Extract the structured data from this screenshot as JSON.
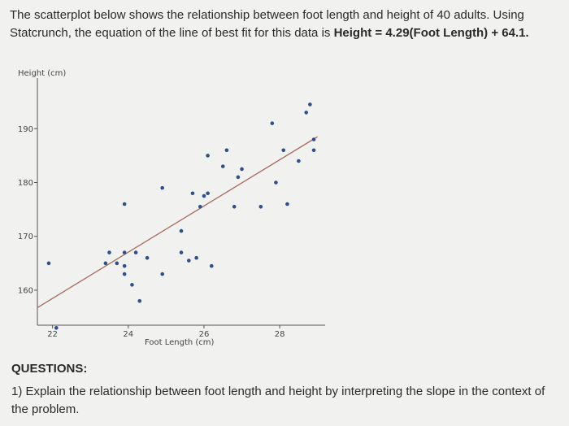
{
  "intro": {
    "text": "The scatterplot below shows the relationship between foot length and height of 40 adults. Using Statcrunch, the equation of the line of best fit for this data is",
    "equation": "Height = 4.29(Foot Length) + 64.1."
  },
  "questions": {
    "heading": "QUESTIONS:",
    "items": [
      "1) Explain the relationship between foot length and height by interpreting the slope in the context of the problem."
    ]
  },
  "colors": {
    "point": "#2f4f8a",
    "line": "#a86a5c",
    "axis": "#555555"
  },
  "chart_data": {
    "type": "scatter",
    "ylabel": "Height (cm)",
    "xlabel": "Foot Length (cm)",
    "xlim": [
      21.6,
      29.2
    ],
    "ylim": [
      153.5,
      198.8
    ],
    "x_ticks": [
      22,
      24,
      26,
      28
    ],
    "y_ticks": [
      160,
      170,
      180,
      190
    ],
    "trendline": {
      "slope": 4.29,
      "intercept": 64.1,
      "x_range": [
        21.6,
        29.0
      ]
    },
    "points": [
      {
        "x": 22.1,
        "y": 153.0
      },
      {
        "x": 21.9,
        "y": 165.0
      },
      {
        "x": 23.5,
        "y": 167.0
      },
      {
        "x": 23.4,
        "y": 165.0
      },
      {
        "x": 23.7,
        "y": 165.0
      },
      {
        "x": 23.9,
        "y": 167.0
      },
      {
        "x": 23.9,
        "y": 164.5
      },
      {
        "x": 23.9,
        "y": 163.0
      },
      {
        "x": 24.2,
        "y": 167.0
      },
      {
        "x": 24.1,
        "y": 161.0
      },
      {
        "x": 23.9,
        "y": 176.0
      },
      {
        "x": 24.3,
        "y": 158.0
      },
      {
        "x": 24.5,
        "y": 166.0
      },
      {
        "x": 24.9,
        "y": 163.0
      },
      {
        "x": 24.9,
        "y": 179.0
      },
      {
        "x": 25.4,
        "y": 171.0
      },
      {
        "x": 25.4,
        "y": 167.0
      },
      {
        "x": 25.6,
        "y": 165.5
      },
      {
        "x": 25.7,
        "y": 178.0
      },
      {
        "x": 25.8,
        "y": 166.0
      },
      {
        "x": 25.9,
        "y": 175.5
      },
      {
        "x": 26.0,
        "y": 177.5
      },
      {
        "x": 26.1,
        "y": 178.0
      },
      {
        "x": 26.2,
        "y": 164.5
      },
      {
        "x": 26.5,
        "y": 183.0
      },
      {
        "x": 26.6,
        "y": 186.0
      },
      {
        "x": 26.8,
        "y": 175.5
      },
      {
        "x": 26.9,
        "y": 181.0
      },
      {
        "x": 27.0,
        "y": 182.5
      },
      {
        "x": 27.5,
        "y": 175.5
      },
      {
        "x": 27.8,
        "y": 191.0
      },
      {
        "x": 27.9,
        "y": 180.0
      },
      {
        "x": 28.1,
        "y": 186.0
      },
      {
        "x": 28.2,
        "y": 176.0
      },
      {
        "x": 28.5,
        "y": 184.0
      },
      {
        "x": 28.7,
        "y": 193.0
      },
      {
        "x": 28.8,
        "y": 194.5
      },
      {
        "x": 28.9,
        "y": 186.0
      },
      {
        "x": 28.9,
        "y": 188.0
      },
      {
        "x": 26.1,
        "y": 185.0
      }
    ]
  }
}
